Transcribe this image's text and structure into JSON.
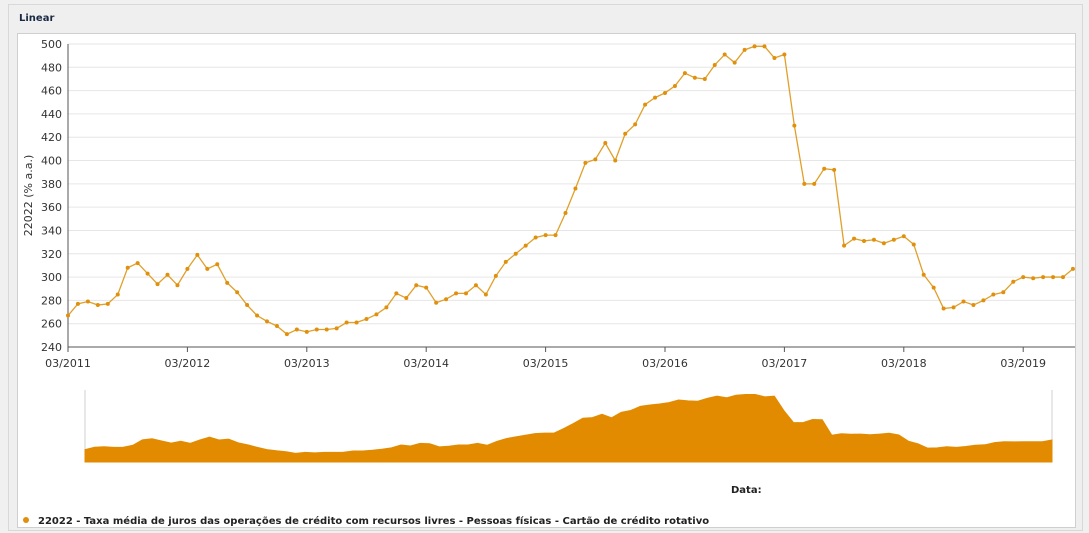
{
  "panel": {
    "title": "Linear"
  },
  "colors": {
    "series": "#e0900c",
    "line": "#e0a02a",
    "grid": "#e6e6e6",
    "navigator": "#e38b00"
  },
  "chart_data": {
    "type": "line",
    "title": "",
    "ylabel": "22022 (% a.a.)",
    "xlabel": "Data:",
    "ylim": [
      240,
      500
    ],
    "yticks": [
      240,
      260,
      280,
      300,
      320,
      340,
      360,
      380,
      400,
      420,
      440,
      460,
      480,
      500
    ],
    "xticks": [
      "03/2011",
      "03/2012",
      "03/2013",
      "03/2014",
      "03/2015",
      "03/2016",
      "03/2017",
      "03/2018",
      "03/2019"
    ],
    "grid": true,
    "legend_position": "bottom",
    "series": [
      {
        "name": "22022 - Taxa média de juros das operações de crédito com recursos livres - Pessoas físicas - Cartão de crédito rotativo",
        "x": [
          "2011-03",
          "2011-04",
          "2011-05",
          "2011-06",
          "2011-07",
          "2011-08",
          "2011-09",
          "2011-10",
          "2011-11",
          "2011-12",
          "2012-01",
          "2012-02",
          "2012-03",
          "2012-04",
          "2012-05",
          "2012-06",
          "2012-07",
          "2012-08",
          "2012-09",
          "2012-10",
          "2012-11",
          "2012-12",
          "2013-01",
          "2013-02",
          "2013-03",
          "2013-04",
          "2013-05",
          "2013-06",
          "2013-07",
          "2013-08",
          "2013-09",
          "2013-10",
          "2013-11",
          "2013-12",
          "2014-01",
          "2014-02",
          "2014-03",
          "2014-04",
          "2014-05",
          "2014-06",
          "2014-07",
          "2014-08",
          "2014-09",
          "2014-10",
          "2014-11",
          "2014-12",
          "2015-01",
          "2015-02",
          "2015-03",
          "2015-04",
          "2015-05",
          "2015-06",
          "2015-07",
          "2015-08",
          "2015-09",
          "2015-10",
          "2015-11",
          "2015-12",
          "2016-01",
          "2016-02",
          "2016-03",
          "2016-04",
          "2016-05",
          "2016-06",
          "2016-07",
          "2016-08",
          "2016-09",
          "2016-10",
          "2016-11",
          "2016-12",
          "2017-01",
          "2017-02",
          "2017-03",
          "2017-04",
          "2017-05",
          "2017-06",
          "2017-07",
          "2017-08",
          "2017-09",
          "2017-10",
          "2017-11",
          "2017-12",
          "2018-01",
          "2018-02",
          "2018-03",
          "2018-04",
          "2018-05",
          "2018-06",
          "2018-07",
          "2018-08",
          "2018-09",
          "2018-10",
          "2018-11",
          "2018-12",
          "2019-01",
          "2019-02",
          "2019-03",
          "2019-04",
          "2019-05",
          "2019-06",
          "2019-07",
          "2019-08"
        ],
        "values": [
          267,
          277,
          279,
          276,
          277,
          285,
          308,
          312,
          303,
          294,
          302,
          293,
          307,
          319,
          307,
          311,
          295,
          287,
          276,
          267,
          262,
          258,
          251,
          255,
          253,
          255,
          255,
          256,
          261,
          261,
          264,
          268,
          274,
          286,
          282,
          293,
          291,
          278,
          281,
          286,
          286,
          293,
          285,
          301,
          313,
          320,
          327,
          334,
          336,
          336,
          355,
          376,
          398,
          401,
          415,
          400,
          423,
          431,
          448,
          454,
          458,
          464,
          475,
          471,
          470,
          482,
          491,
          484,
          495,
          498,
          498,
          488,
          491,
          430,
          380,
          380,
          393,
          392,
          327,
          333,
          331,
          332,
          329,
          332,
          335,
          328,
          302,
          291,
          273,
          274,
          279,
          276,
          280,
          285,
          287,
          296,
          300,
          299,
          300,
          300,
          300,
          307
        ]
      }
    ]
  }
}
